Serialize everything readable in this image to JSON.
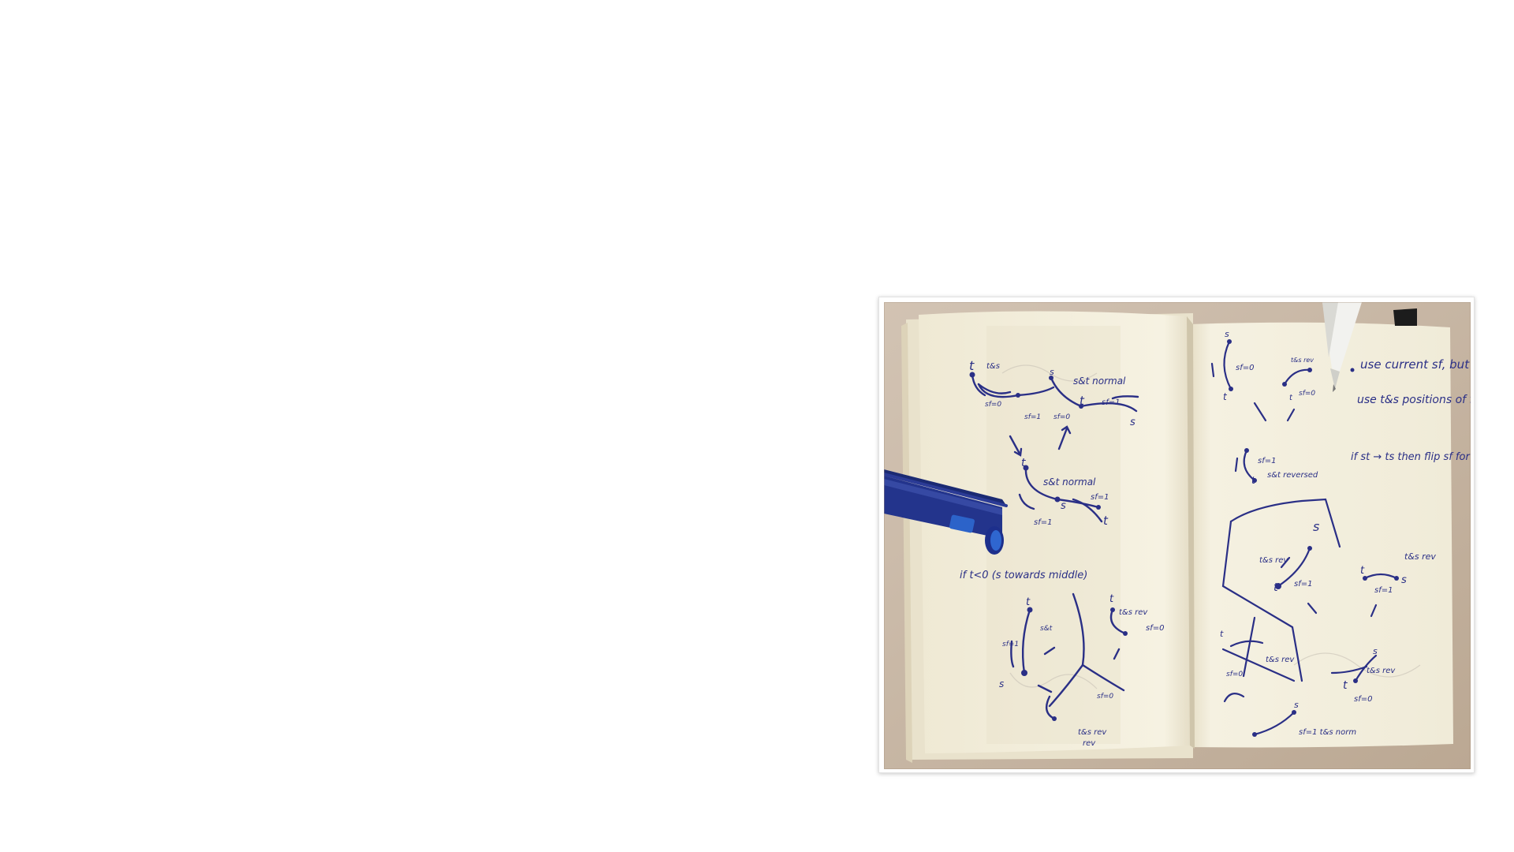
{
  "photo": {
    "alt": "Open notebook with handwritten blue ink sketches of curves labelled s and t, a blue pen on the left page and a white pen at the top right",
    "colors": {
      "background": "#ffffff",
      "table": "#cbb9a6",
      "paper": "#f4f0df",
      "ink": "#2a2f86",
      "pen_blue": "#23348c"
    },
    "left_page_notes": [
      "s&t normal",
      "s&t normal",
      "if t<0 (s towards middle)",
      "t&s rev",
      "sf=1",
      "sf=0",
      "t&s rev"
    ],
    "right_page_notes": [
      "use current sf, but",
      "use t&s positions of final",
      "if st → ts then flip sf for in between state",
      "t&s rev",
      "sf=1 t&s norm",
      "t&s rev",
      "sf=0"
    ]
  }
}
